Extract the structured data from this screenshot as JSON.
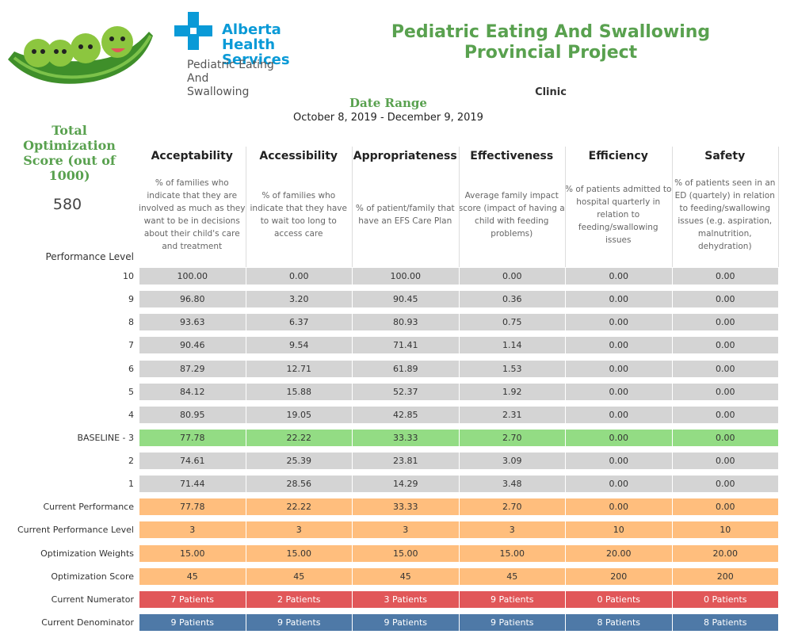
{
  "header": {
    "title": "Pediatric Eating And Swallowing Provincial Project",
    "logo_org": "Alberta Health Services",
    "logo_program": "Pediatric Eating And Swallowing",
    "clinic_label": "Clinic",
    "date_range_label": "Date Range",
    "date_range": "October 8, 2019 - December 9, 2019"
  },
  "score_panel": {
    "label": "Total Optimization Score (out of 1000)",
    "value": "580"
  },
  "table": {
    "row_header": "Performance Level",
    "columns": [
      {
        "name": "Acceptability",
        "description": "% of families who indicate that they are involved as much as they want to be in decisions about their child's care and treatment"
      },
      {
        "name": "Accessibility",
        "description": "% of families who indicate that they have to wait too long to access care"
      },
      {
        "name": "Appropriateness",
        "description": "% of patient/family that have an EFS Care Plan"
      },
      {
        "name": "Effectiveness",
        "description": "Average family impact score (impact of having a child with feeding problems)"
      },
      {
        "name": "Efficiency",
        "description": "% of patients admitted to hospital quarterly in relation to feeding/swallowing issues"
      },
      {
        "name": "Safety",
        "description": "% of patients seen in an ED (quartely) in relation to feeding/swallowing issues (e.g. aspiration, malnutrition, dehydration)"
      }
    ],
    "rows": [
      {
        "label": "10",
        "color": "#d4d4d4",
        "values": [
          "100.00",
          "0.00",
          "100.00",
          "0.00",
          "0.00",
          "0.00"
        ]
      },
      {
        "label": "9",
        "color": "#d4d4d4",
        "values": [
          "96.80",
          "3.20",
          "90.45",
          "0.36",
          "0.00",
          "0.00"
        ]
      },
      {
        "label": "8",
        "color": "#d4d4d4",
        "values": [
          "93.63",
          "6.37",
          "80.93",
          "0.75",
          "0.00",
          "0.00"
        ]
      },
      {
        "label": "7",
        "color": "#d4d4d4",
        "values": [
          "90.46",
          "9.54",
          "71.41",
          "1.14",
          "0.00",
          "0.00"
        ]
      },
      {
        "label": "6",
        "color": "#d4d4d4",
        "values": [
          "87.29",
          "12.71",
          "61.89",
          "1.53",
          "0.00",
          "0.00"
        ]
      },
      {
        "label": "5",
        "color": "#d4d4d4",
        "values": [
          "84.12",
          "15.88",
          "52.37",
          "1.92",
          "0.00",
          "0.00"
        ]
      },
      {
        "label": "4",
        "color": "#d4d4d4",
        "values": [
          "80.95",
          "19.05",
          "42.85",
          "2.31",
          "0.00",
          "0.00"
        ]
      },
      {
        "label": "BASELINE - 3",
        "color": "#93dc84",
        "values": [
          "77.78",
          "22.22",
          "33.33",
          "2.70",
          "0.00",
          "0.00"
        ]
      },
      {
        "label": "2",
        "color": "#d4d4d4",
        "values": [
          "74.61",
          "25.39",
          "23.81",
          "3.09",
          "0.00",
          "0.00"
        ]
      },
      {
        "label": "1",
        "color": "#d4d4d4",
        "values": [
          "71.44",
          "28.56",
          "14.29",
          "3.48",
          "0.00",
          "0.00"
        ]
      },
      {
        "label": "Current Performance",
        "color": "#ffbe7d",
        "values": [
          "77.78",
          "22.22",
          "33.33",
          "2.70",
          "0.00",
          "0.00"
        ]
      },
      {
        "label": "Current Performance Level",
        "color": "#ffbe7d",
        "values": [
          "3",
          "3",
          "3",
          "3",
          "10",
          "10"
        ]
      },
      {
        "label": "Optimization Weights",
        "color": "#ffbe7d",
        "values": [
          "15.00",
          "15.00",
          "15.00",
          "15.00",
          "20.00",
          "20.00"
        ]
      },
      {
        "label": "Optimization Score",
        "color": "#ffbe7d",
        "values": [
          "45",
          "45",
          "45",
          "45",
          "200",
          "200"
        ]
      },
      {
        "label": "Current Numerator",
        "color": "#e15759",
        "values": [
          "7 Patients",
          "2 Patients",
          "3 Patients",
          "9 Patients",
          "0 Patients",
          "0 Patients"
        ]
      },
      {
        "label": "Current Denominator",
        "color": "#4e79a7",
        "values": [
          "9 Patients",
          "9 Patients",
          "9 Patients",
          "9 Patients",
          "8 Patients",
          "8 Patients"
        ]
      }
    ]
  }
}
